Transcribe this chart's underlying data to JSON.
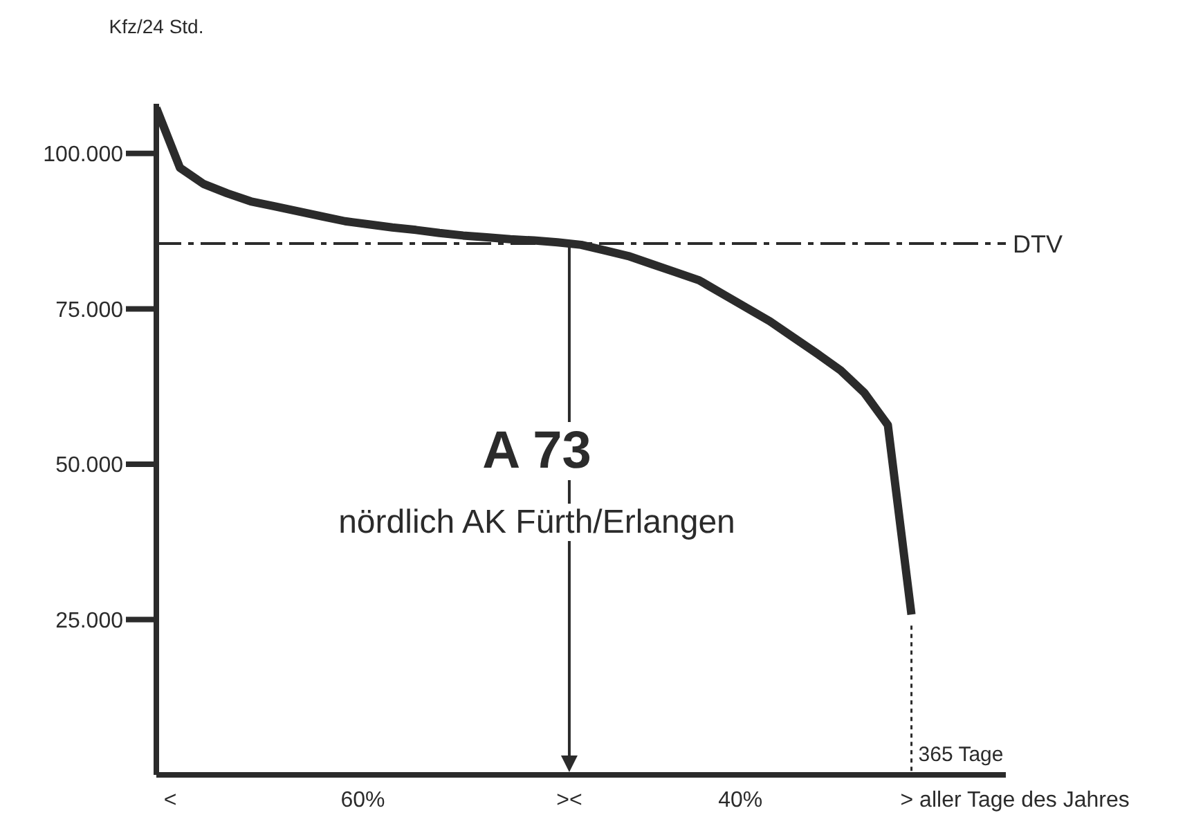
{
  "chart_data": {
    "type": "line",
    "ylabel": "Kfz/24 Std.",
    "categories": [
      null,
      null,
      null,
      null,
      null,
      null,
      null,
      null,
      null,
      null,
      null,
      null,
      null,
      null,
      null,
      null,
      null,
      null,
      null,
      null,
      null,
      null,
      null,
      null,
      null,
      null,
      null,
      null,
      null,
      null,
      null,
      null,
      null,
      null,
      null,
      null,
      null
    ],
    "series": [
      {
        "color": "#2b2b2b",
        "values": [
          107300,
          97700,
          95100,
          93600,
          92300,
          91500,
          90700,
          89900,
          89100,
          88600,
          88100,
          87700,
          87200,
          86800,
          86500,
          86200,
          86000,
          85700,
          85300,
          84400,
          83500,
          82200,
          80900,
          79600,
          77400,
          75200,
          73000,
          70400,
          67800,
          65100,
          61500,
          56300,
          25800,
          null,
          null,
          null,
          null
        ]
      }
    ],
    "ylim": [
      0,
      108000
    ],
    "yticks": [
      {
        "value": 25000,
        "label": "25.000"
      },
      {
        "value": 50000,
        "label": "50.000"
      },
      {
        "value": 75000,
        "label": "75.000"
      },
      {
        "value": 100000,
        "label": "100.000"
      }
    ],
    "tick_labels": "y",
    "ref_lines": [
      {
        "axis": "y",
        "value": 85500,
        "label": "DTV",
        "line_style": "dashdot",
        "color": "#2b2b2b"
      }
    ],
    "annotations": [
      "A 73",
      "nördlich AK Fürth/Erlangen",
      "<",
      "60%",
      "><",
      "40%",
      "> aller Tage des Jahres",
      "365 Tage"
    ],
    "grid": false,
    "legend": false,
    "marker": "none",
    "line_style": "solid"
  }
}
